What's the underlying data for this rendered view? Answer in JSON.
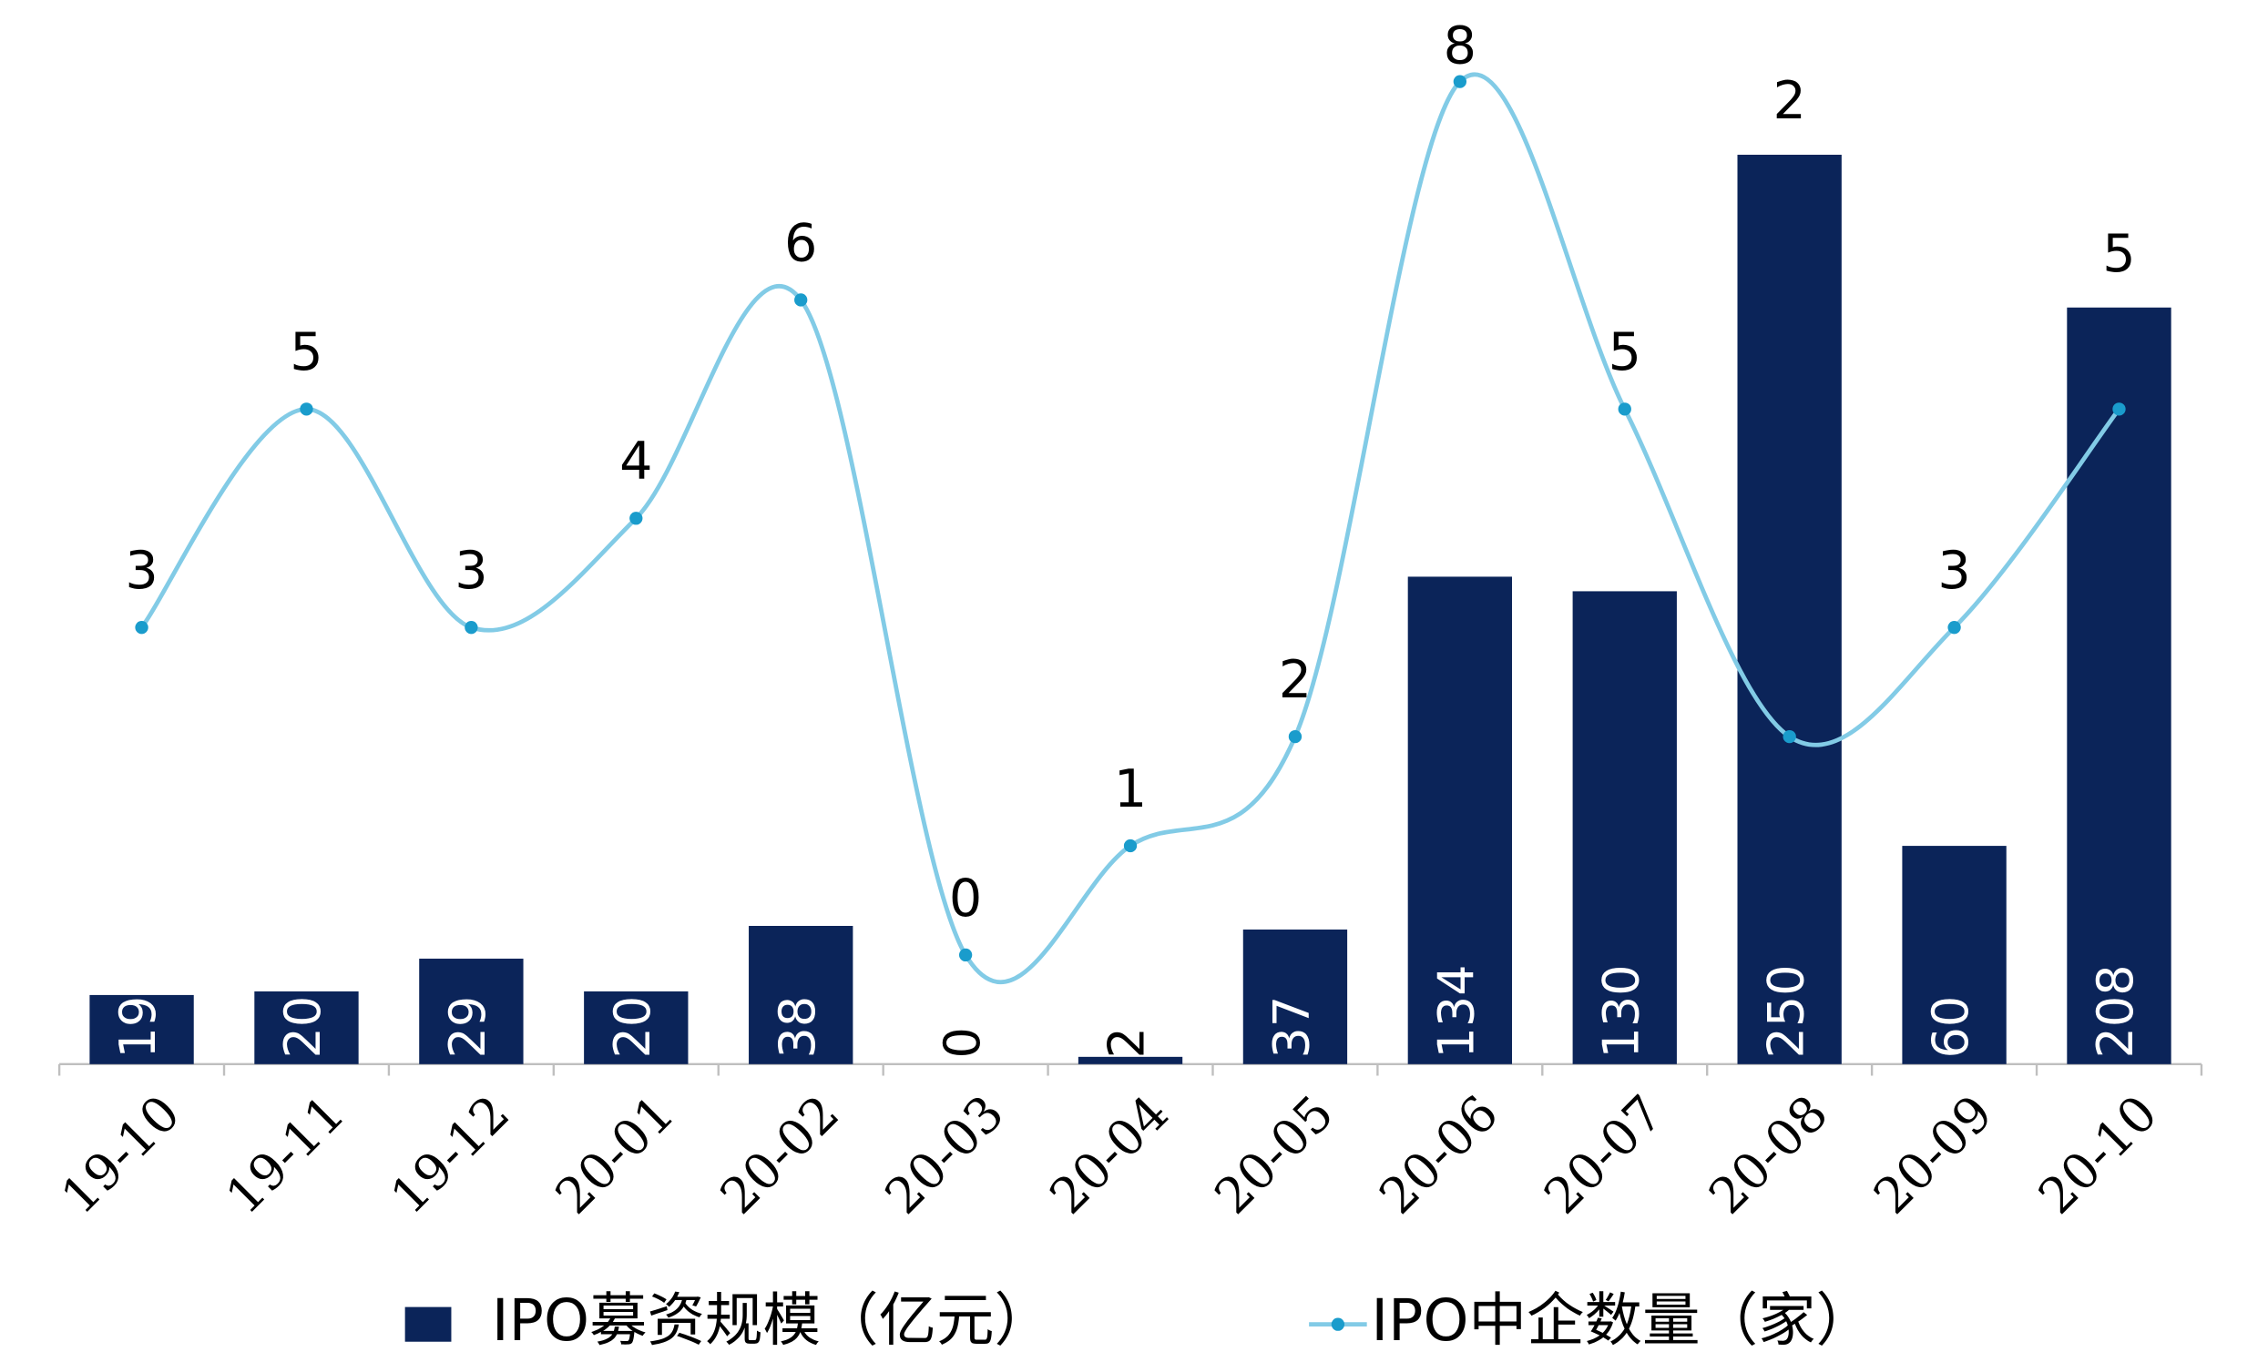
{
  "chart_data": {
    "type": "bar+line",
    "categories": [
      "19-10",
      "19-11",
      "19-12",
      "20-01",
      "20-02",
      "20-03",
      "20-04",
      "20-05",
      "20-06",
      "20-07",
      "20-08",
      "20-09",
      "20-10"
    ],
    "series": [
      {
        "name": "IPO募资规模（亿元）",
        "type": "bar",
        "color": "#0b2459",
        "values": [
          19,
          20,
          29,
          20,
          38,
          0,
          2,
          37,
          134,
          130,
          250,
          60,
          208
        ]
      },
      {
        "name": "IPO中企数量（家）",
        "type": "line",
        "axis": "y2",
        "color": "#82cbe6",
        "values": [
          3,
          5,
          3,
          4,
          6,
          0,
          1,
          2,
          8,
          5,
          2,
          3,
          5
        ]
      }
    ],
    "ylim": [
      0,
      250
    ],
    "y2lim": [
      -1,
      7.33
    ],
    "legend": "bottom"
  }
}
